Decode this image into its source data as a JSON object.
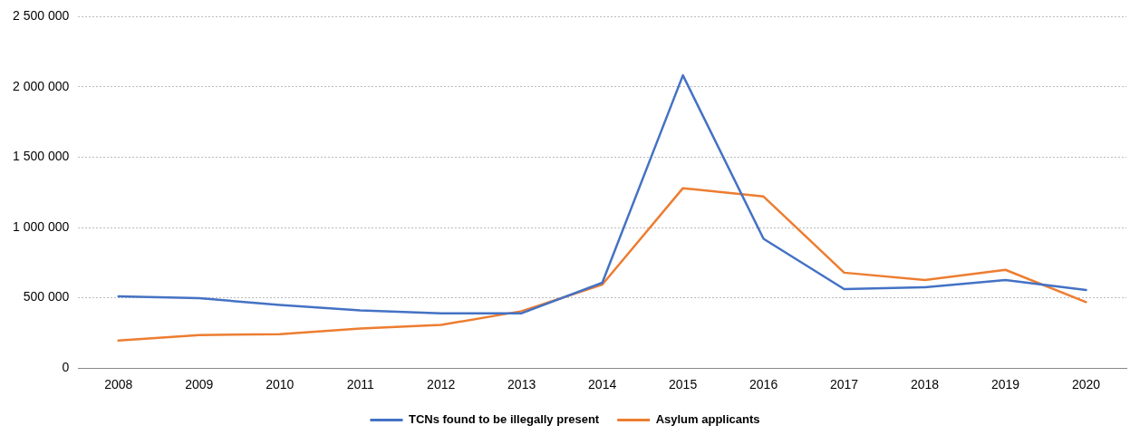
{
  "chart_data": {
    "type": "line",
    "categories": [
      "2008",
      "2009",
      "2010",
      "2011",
      "2012",
      "2013",
      "2014",
      "2015",
      "2016",
      "2017",
      "2018",
      "2019",
      "2020"
    ],
    "series": [
      {
        "name": "TCNs found to be illegally present",
        "color": "#4472c4",
        "values": [
          510000,
          497000,
          450000,
          410000,
          390000,
          390000,
          607000,
          2083000,
          920000,
          562000,
          575000,
          627000,
          555000
        ]
      },
      {
        "name": "Asylum applicants",
        "color": "#ed7d31",
        "values": [
          196000,
          235000,
          242000,
          281000,
          307000,
          405000,
          594000,
          1280000,
          1221000,
          679000,
          627000,
          699000,
          470000
        ]
      }
    ],
    "ylim": [
      0,
      2500000
    ],
    "yticks": [
      0,
      {
        "value": 500000,
        "label": "500 000"
      },
      {
        "value": 1000000,
        "label": "1 000 000"
      },
      {
        "value": 1500000,
        "label": "1 500 000"
      },
      {
        "value": 2000000,
        "label": "2 000 000"
      },
      {
        "value": 2500000,
        "label": "2 500 000"
      }
    ],
    "grid": "y",
    "legend": "bottom",
    "marker": "none",
    "line_style": "solid"
  }
}
